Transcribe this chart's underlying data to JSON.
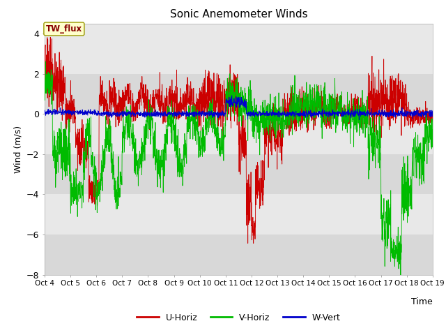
{
  "title": "Sonic Anemometer Winds",
  "xlabel": "Time",
  "ylabel": "Wind (m/s)",
  "ylim": [
    -8,
    4.5
  ],
  "yticks": [
    -8,
    -6,
    -4,
    -2,
    0,
    2,
    4
  ],
  "xlim_days": [
    4,
    19
  ],
  "xtick_labels": [
    "Oct 4",
    "Oct 5",
    "Oct 6",
    "Oct 7",
    "Oct 8",
    "Oct 9",
    "Oct 10",
    "Oct 11",
    "Oct 12",
    "Oct 13",
    "Oct 14",
    "Oct 15",
    "Oct 16",
    "Oct 17",
    "Oct 18",
    "Oct 19"
  ],
  "legend_labels": [
    "U-Horiz",
    "V-Horiz",
    "W-Vert"
  ],
  "legend_colors": [
    "#cc0000",
    "#00bb00",
    "#0000cc"
  ],
  "annotation_text": "TW_flux",
  "bg_color": "#e8e8e8",
  "line_colors": [
    "#cc0000",
    "#00bb00",
    "#0000cc"
  ],
  "linewidth": 0.6,
  "seed": 42,
  "band_colors": [
    "#d8d8d8",
    "#e8e8e8"
  ],
  "figsize": [
    6.4,
    4.8
  ],
  "dpi": 100
}
